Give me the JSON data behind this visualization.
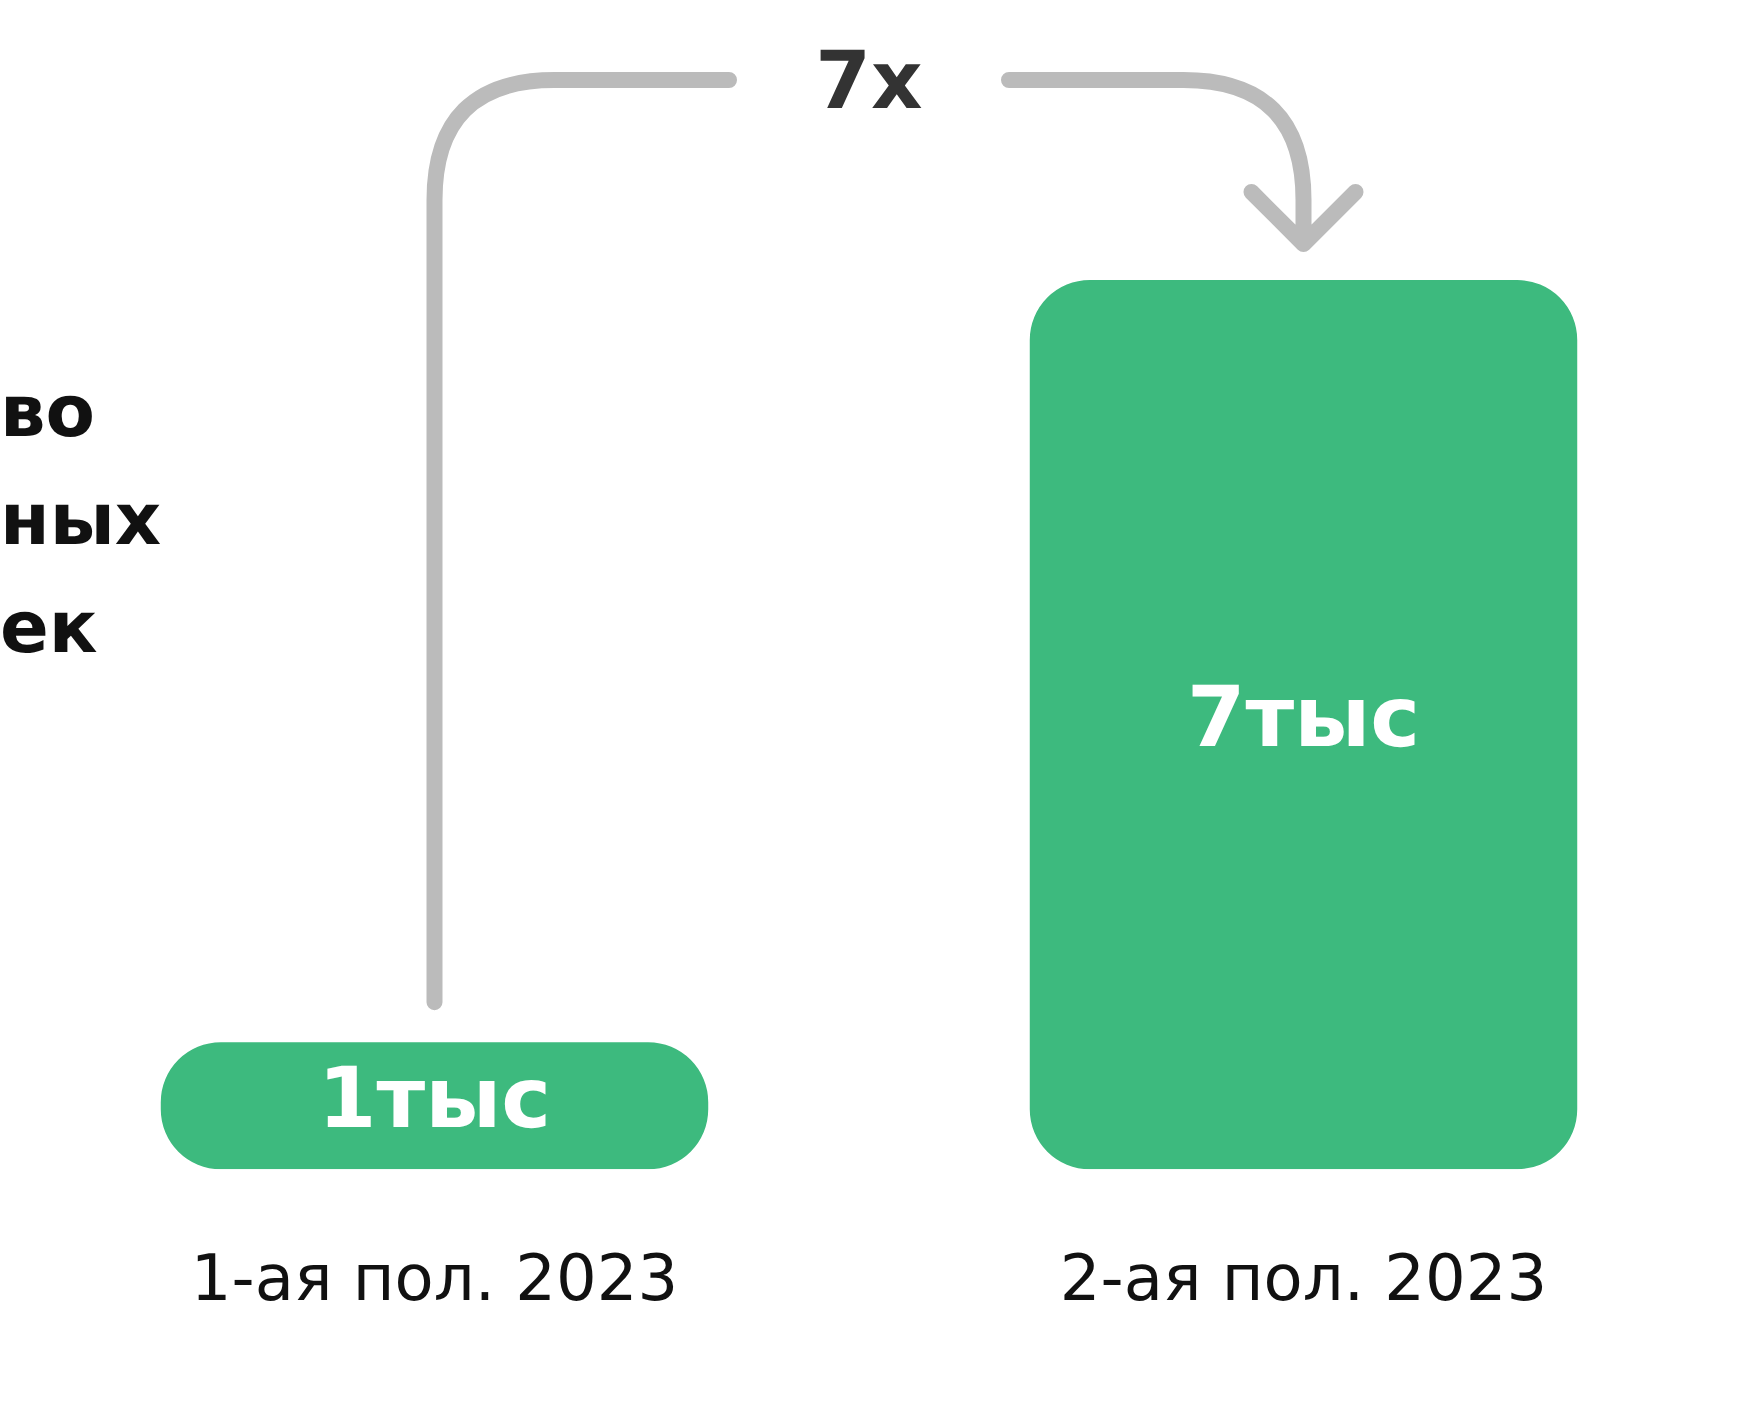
{
  "chart_data": {
    "type": "bar",
    "title": "во\nных\nек",
    "categories": [
      "1-ая пол. 2023",
      "2-ая пол. 2023"
    ],
    "values": [
      1,
      7
    ],
    "value_labels": [
      "1тыс",
      "7тыс"
    ],
    "color": "#3dba7e",
    "tick_labels": "x",
    "annotations": [
      "7x"
    ]
  }
}
